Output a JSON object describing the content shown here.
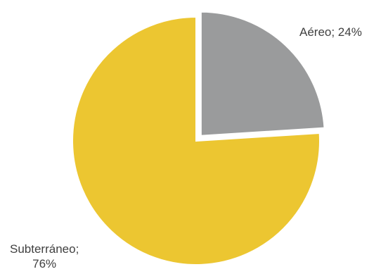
{
  "chart_data": {
    "type": "pie",
    "title": "",
    "slices": [
      {
        "name": "Aéreo",
        "value": 24,
        "label": "Aéreo; 24%",
        "color": "#9a9b9c",
        "exploded": true
      },
      {
        "name": "Subterráneo",
        "value": 76,
        "label_line1": "Subterráneo;",
        "label_line2": "76%",
        "color": "#ecc631",
        "exploded": false
      }
    ]
  }
}
